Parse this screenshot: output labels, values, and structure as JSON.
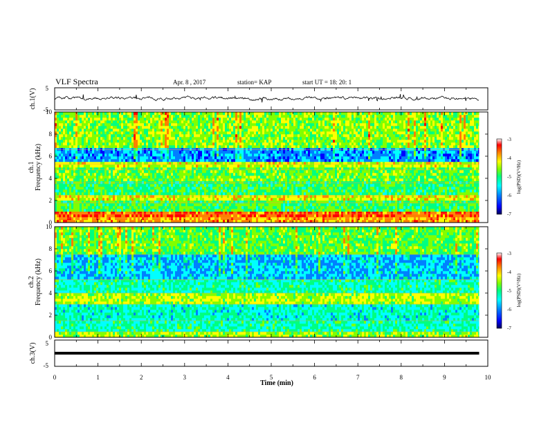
{
  "header": {
    "title": "VLF Spectra",
    "date": "Apr. 8 , 2017",
    "station": "station= KAP",
    "start_ut": "start UT =  18: 20: 1"
  },
  "colors": {
    "spectrum_scale": [
      "#00005a",
      "#0000ff",
      "#0080ff",
      "#00ffff",
      "#00ff80",
      "#80ff00",
      "#ffff00",
      "#ff8000",
      "#ff0000",
      "#ffffff"
    ],
    "trace": "#000000"
  },
  "chart_data": [
    {
      "type": "line",
      "name_label": "ch.1(V)",
      "ylim": [
        -5,
        5
      ],
      "yticks": [
        "5",
        "-5"
      ],
      "x_range": [
        0,
        9.8
      ],
      "approx_mean": 0.3,
      "approx_amplitude": 1.5
    },
    {
      "type": "heatmap",
      "ylabel": "ch.1\nFrequency (kHz)",
      "ylabel_line1": "ch.1",
      "ylabel_line2": "Frequency (kHz)",
      "ylim": [
        0,
        10
      ],
      "yticks": [
        "0",
        "2",
        "4",
        "6",
        "8",
        "10"
      ],
      "x_range": [
        0,
        9.8
      ],
      "bands_khz": [
        {
          "from": 0.0,
          "to": 0.4,
          "level": 6.6
        },
        {
          "from": 0.4,
          "to": 0.8,
          "level": 7.4
        },
        {
          "from": 0.8,
          "to": 1.8,
          "level": 4.4
        },
        {
          "from": 1.8,
          "to": 2.4,
          "level": 5.8
        },
        {
          "from": 2.4,
          "to": 3.6,
          "level": 4.2
        },
        {
          "from": 3.6,
          "to": 4.8,
          "level": 4.8
        },
        {
          "from": 4.8,
          "to": 5.3,
          "level": 5.6
        },
        {
          "from": 5.3,
          "to": 6.6,
          "level": 2.2
        },
        {
          "from": 6.6,
          "to": 10.0,
          "level": 5.0
        }
      ],
      "colorbar": {
        "label": "log(PSD)(V²/Hz)",
        "ticks": [
          "-3",
          "-4",
          "-5",
          "-6",
          "-7"
        ],
        "range": [
          -7,
          -3
        ]
      }
    },
    {
      "type": "heatmap",
      "ylabel": "ch.2\nFrequency (kHz)",
      "ylabel_line1": "ch.2",
      "ylabel_line2": "Frequency (kHz)",
      "ylim": [
        0,
        10
      ],
      "yticks": [
        "0",
        "2",
        "4",
        "6",
        "8",
        "10"
      ],
      "x_range": [
        0,
        9.8
      ],
      "bands_khz": [
        {
          "from": 0.0,
          "to": 0.5,
          "level": 5.2
        },
        {
          "from": 0.5,
          "to": 1.5,
          "level": 3.6
        },
        {
          "from": 1.5,
          "to": 3.0,
          "level": 3.4
        },
        {
          "from": 3.0,
          "to": 4.0,
          "level": 5.4
        },
        {
          "from": 4.0,
          "to": 5.2,
          "level": 3.6
        },
        {
          "from": 5.2,
          "to": 7.5,
          "level": 2.6
        },
        {
          "from": 7.5,
          "to": 10.0,
          "level": 4.6
        }
      ],
      "colorbar": {
        "label": "log(PSD)(V²/Hz)",
        "ticks": [
          "-3",
          "-4",
          "-5",
          "-6",
          "-7"
        ],
        "range": [
          -7,
          -3
        ]
      }
    },
    {
      "type": "line",
      "name_label": "ch.3(V)",
      "ylim": [
        -5,
        5
      ],
      "yticks": [
        "5",
        "-5"
      ],
      "x_range": [
        0,
        9.8
      ],
      "approx_mean": 0.0,
      "approx_amplitude": 0.1
    }
  ],
  "xaxis": {
    "label": "Time (min)",
    "ticks": [
      "0",
      "1",
      "2",
      "3",
      "4",
      "5",
      "6",
      "7",
      "8",
      "9",
      "10"
    ],
    "range": [
      0,
      10
    ]
  }
}
